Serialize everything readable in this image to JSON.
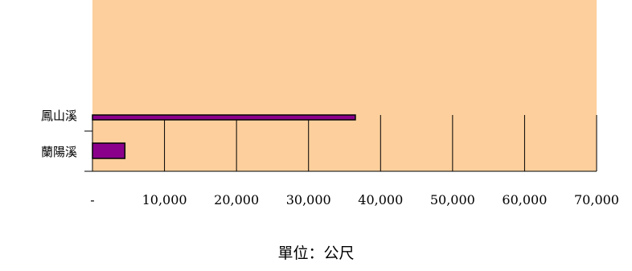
{
  "chart_data": {
    "type": "bar",
    "orientation": "horizontal",
    "categories": [
      "鳳山溪",
      "蘭陽溪"
    ],
    "values": [
      36500,
      4500
    ],
    "xlim": [
      0,
      70000
    ],
    "x_ticks": [
      0,
      10000,
      20000,
      30000,
      40000,
      50000,
      60000,
      70000
    ],
    "x_tick_labels": [
      "-",
      "10,000",
      "20,000",
      "30,000",
      "40,000",
      "50,000",
      "60,000",
      "70,000"
    ],
    "unit_label": "單位：公尺",
    "grid": "vertical",
    "colors": {
      "plot_background": "#FCCF9C",
      "bar_fill": "#8B008B",
      "bar_stroke": "#000000",
      "gridline": "#000000"
    }
  }
}
